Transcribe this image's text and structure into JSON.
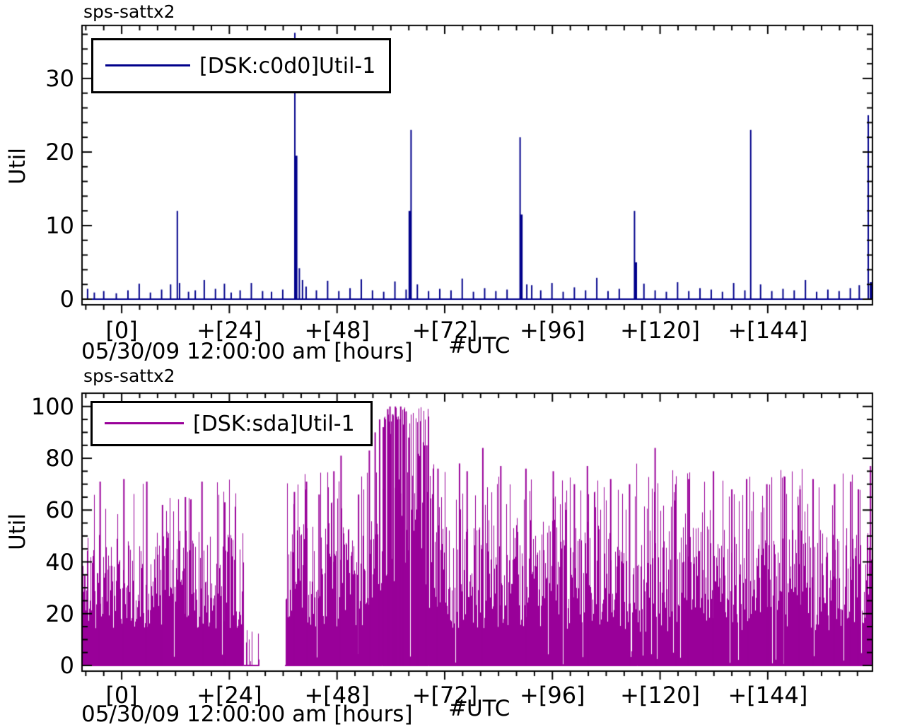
{
  "app": {
    "background": "#ffffff",
    "text_color": "#000000",
    "axis_color": "#000000"
  },
  "chart_data": [
    {
      "type": "bar",
      "style": "impulse-spikes",
      "title": "sps-sattx2",
      "ylabel": "Util",
      "xlabel": "#UTC",
      "x_date_label": "05/30/09 12:00:00 am [hours]",
      "legend": {
        "label": "[DSK:c0d0]Util-1",
        "color": "#00008b",
        "position": "top-left",
        "border": true
      },
      "series_color": "#00008b",
      "grid": false,
      "x_range": [
        -9,
        167.5
      ],
      "y_range": [
        -0.9,
        37.3
      ],
      "x_tick_hours": [
        0,
        24,
        48,
        72,
        96,
        120,
        144
      ],
      "x_tick_labels": [
        "[0]",
        "+[24]",
        "+[48]",
        "+[72]",
        "+[96]",
        "+[120]",
        "+[144]"
      ],
      "x_minor_step": 4,
      "y_ticks": [
        0,
        10,
        20,
        30
      ],
      "y_minor_step": 2,
      "baseline": 0,
      "spikes": [
        [
          -7.6,
          1.4
        ],
        [
          -6.1,
          0.9
        ],
        [
          -4,
          1.1
        ],
        [
          -1.2,
          0.8
        ],
        [
          1.4,
          1.2
        ],
        [
          3.9,
          2.1
        ],
        [
          6.4,
          0.9
        ],
        [
          8.9,
          1.3
        ],
        [
          10.9,
          2.0
        ],
        [
          12.4,
          12
        ],
        [
          12.9,
          2.2
        ],
        [
          14.9,
          1.0
        ],
        [
          16.4,
          1.2
        ],
        [
          18.4,
          2.6
        ],
        [
          20.9,
          1.4
        ],
        [
          22.9,
          2.1
        ],
        [
          24.4,
          0.9
        ],
        [
          26.4,
          1.2
        ],
        [
          28.9,
          2.2
        ],
        [
          31.4,
          1.1
        ],
        [
          33.4,
          1.0
        ],
        [
          35.9,
          1.3
        ],
        [
          38.6,
          36.2
        ],
        [
          38.85,
          19.5,
          4
        ],
        [
          39.6,
          4.2
        ],
        [
          40.3,
          2.6
        ],
        [
          41.1,
          1.7
        ],
        [
          43.4,
          1.2
        ],
        [
          45.9,
          2.5
        ],
        [
          48.4,
          1.1
        ],
        [
          50.9,
          1.5
        ],
        [
          53.4,
          2.7
        ],
        [
          55.9,
          1.2
        ],
        [
          58.4,
          1.0
        ],
        [
          60.9,
          2.4
        ],
        [
          63.4,
          1.3
        ],
        [
          64.25,
          12,
          4
        ],
        [
          64.5,
          23
        ],
        [
          65.9,
          2.0
        ],
        [
          68.4,
          1.1
        ],
        [
          70.9,
          1.4
        ],
        [
          73.4,
          1.2
        ],
        [
          75.9,
          2.8
        ],
        [
          78.4,
          1.0
        ],
        [
          80.9,
          1.5
        ],
        [
          83.4,
          1.1
        ],
        [
          85.9,
          1.3
        ],
        [
          88.8,
          22
        ],
        [
          89.05,
          11.5,
          4
        ],
        [
          90.3,
          2.0
        ],
        [
          91.4,
          1.9
        ],
        [
          93.4,
          1.2
        ],
        [
          95.9,
          2.2
        ],
        [
          98.4,
          1.0
        ],
        [
          100.9,
          1.6
        ],
        [
          103.4,
          1.2
        ],
        [
          105.9,
          2.9
        ],
        [
          108.4,
          1.1
        ],
        [
          110.9,
          1.4
        ],
        [
          114.3,
          12
        ],
        [
          114.55,
          5,
          4
        ],
        [
          116.4,
          2.1
        ],
        [
          118.9,
          1.2
        ],
        [
          121.4,
          1.0
        ],
        [
          123.9,
          2.3
        ],
        [
          126.4,
          1.1
        ],
        [
          128.9,
          1.5
        ],
        [
          131.4,
          1.3
        ],
        [
          133.9,
          1.0
        ],
        [
          136.4,
          2.2
        ],
        [
          138.9,
          1.2
        ],
        [
          140.2,
          23
        ],
        [
          142.4,
          2.0
        ],
        [
          144.9,
          1.1
        ],
        [
          147.4,
          1.4
        ],
        [
          149.9,
          1.2
        ],
        [
          152.4,
          2.6
        ],
        [
          154.9,
          1.0
        ],
        [
          157.4,
          1.3
        ],
        [
          159.9,
          1.1
        ],
        [
          162.4,
          1.5
        ],
        [
          164.4,
          1.9
        ],
        [
          166.4,
          25
        ],
        [
          167.2,
          2.3,
          6
        ]
      ]
    },
    {
      "type": "bar",
      "style": "dense-impulse-area",
      "title": "sps-sattx2",
      "ylabel": "Util",
      "xlabel": "#UTC",
      "x_date_label": "05/30/09 12:00:00 am [hours]",
      "legend": {
        "label": "[DSK:sda]Util-1",
        "color": "#990099",
        "position": "top-left",
        "border": true
      },
      "series_color": "#990099",
      "grid": false,
      "x_range": [
        -9,
        167.5
      ],
      "y_range": [
        -2.4,
        105.4
      ],
      "x_tick_hours": [
        0,
        24,
        48,
        72,
        96,
        120,
        144
      ],
      "x_tick_labels": [
        "[0]",
        "+[24]",
        "+[48]",
        "+[72]",
        "+[96]",
        "+[120]",
        "+[144]"
      ],
      "x_minor_step": 4,
      "y_ticks": [
        0,
        20,
        40,
        60,
        80,
        100
      ],
      "y_minor_step": 5,
      "baseline": 0,
      "data_gap_hours": [
        30.7,
        36.4
      ],
      "sparse_tail_hours": [
        27.2,
        30.7
      ],
      "burst_note": "sustained utilization burst reaching 100 around hours 58-69",
      "noise_seed": 1337,
      "envelope_segments": [
        {
          "h0": -9,
          "h1": 27.2,
          "base": [
            14,
            52
          ],
          "peaks": [
            58,
            72
          ],
          "peak_p": 0.1,
          "dip_p": 0.02
        },
        {
          "h0": 27.2,
          "h1": 30.7,
          "sparse": 0.3,
          "base": [
            1,
            14
          ]
        },
        {
          "h0": 30.7,
          "h1": 36.4,
          "gap": true
        },
        {
          "h0": 36.4,
          "h1": 58.0,
          "base": [
            15,
            56
          ],
          "peaks": [
            60,
            75
          ],
          "peak_p": 0.12,
          "dip_p": 0.02
        },
        {
          "h0": 58.0,
          "h1": 68.5,
          "base": [
            30,
            92
          ],
          "peaks": [
            93,
            100
          ],
          "peak_p": 0.45,
          "dip_p": 0.02
        },
        {
          "h0": 68.5,
          "h1": 115.0,
          "base": [
            14,
            57
          ],
          "peaks": [
            60,
            78
          ],
          "peak_p": 0.12,
          "dip_p": 0.03
        },
        {
          "h0": 115.0,
          "h1": 167.5,
          "base": [
            13,
            54
          ],
          "peaks": [
            58,
            78
          ],
          "peak_p": 0.1,
          "dip_p": 0.03
        }
      ],
      "notable_peaks": [
        [
          -4.8,
          71
        ],
        [
          0.5,
          72
        ],
        [
          5.6,
          71
        ],
        [
          9.1,
          62
        ],
        [
          14.2,
          65
        ],
        [
          17.9,
          71
        ],
        [
          23.0,
          63
        ],
        [
          38.5,
          67
        ],
        [
          41.2,
          71
        ],
        [
          44.0,
          66
        ],
        [
          47.3,
          75
        ],
        [
          48.9,
          81
        ],
        [
          52.8,
          66
        ],
        [
          55.2,
          83
        ],
        [
          56.5,
          90
        ],
        [
          57.5,
          95
        ],
        [
          58.3,
          92
        ],
        [
          59.3,
          99
        ],
        [
          59.8,
          100
        ],
        [
          60.4,
          97
        ],
        [
          61.0,
          100
        ],
        [
          61.6,
          95
        ],
        [
          62.2,
          100
        ],
        [
          62.8,
          93
        ],
        [
          63.4,
          98
        ],
        [
          64.0,
          88
        ],
        [
          66.1,
          80
        ],
        [
          68.0,
          85
        ],
        [
          70.5,
          76
        ],
        [
          75.3,
          78
        ],
        [
          77.0,
          75
        ],
        [
          80.5,
          84
        ],
        [
          84.5,
          77
        ],
        [
          90.1,
          76
        ],
        [
          96.2,
          75
        ],
        [
          100.9,
          70
        ],
        [
          103.8,
          77
        ],
        [
          109.0,
          72
        ],
        [
          113.2,
          70
        ],
        [
          118.9,
          84
        ],
        [
          123.5,
          70
        ],
        [
          126.4,
          72
        ],
        [
          131.9,
          75
        ],
        [
          136.0,
          68
        ],
        [
          139.3,
          72
        ],
        [
          143.8,
          70
        ],
        [
          147.7,
          73
        ],
        [
          151.2,
          68
        ],
        [
          154.1,
          72
        ],
        [
          158.9,
          70
        ],
        [
          162.5,
          71
        ],
        [
          164.2,
          68
        ],
        [
          166.9,
          77
        ]
      ]
    }
  ]
}
